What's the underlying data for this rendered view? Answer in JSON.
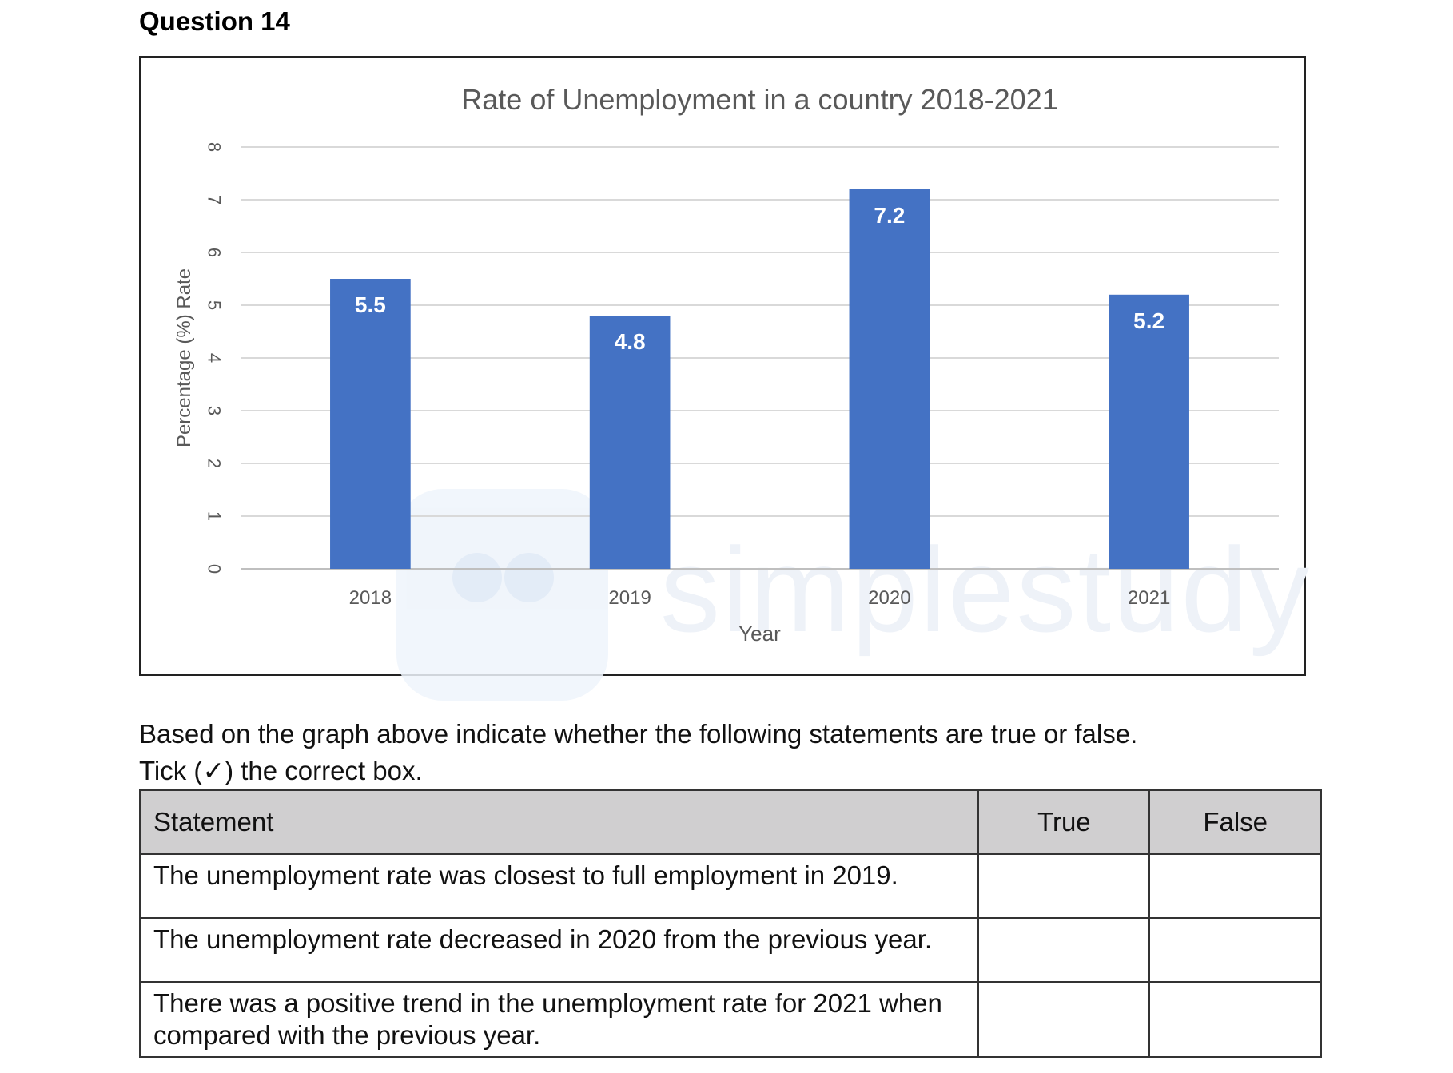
{
  "question": {
    "title": "Question 14"
  },
  "chart_data": {
    "type": "bar",
    "title": "Rate of Unemployment in a country 2018-2021",
    "xlabel": "Year",
    "ylabel": "Percentage (%) Rate",
    "categories": [
      "2018",
      "2019",
      "2020",
      "2021"
    ],
    "values": [
      5.5,
      4.8,
      7.2,
      5.2
    ],
    "data_labels": [
      "5.5",
      "4.8",
      "7.2",
      "5.2"
    ],
    "ylim": [
      0,
      8
    ],
    "yticks": [
      0,
      1,
      2,
      3,
      4,
      5,
      6,
      7,
      8
    ],
    "grid": true,
    "bar_color": "#4472c4"
  },
  "watermark": {
    "text": "simplestudy"
  },
  "instructions": {
    "line1": "Based on the graph above indicate whether the following statements are true or false.",
    "line2": "Tick (✓) the correct box."
  },
  "table": {
    "headers": {
      "statement": "Statement",
      "true": "True",
      "false": "False"
    },
    "rows": [
      {
        "statement": "The unemployment rate was closest to full employment in 2019."
      },
      {
        "statement": "The unemployment rate decreased in 2020 from the previous year."
      },
      {
        "statement": "There was a positive trend in the unemployment rate for 2021 when compared with the previous year."
      }
    ]
  }
}
